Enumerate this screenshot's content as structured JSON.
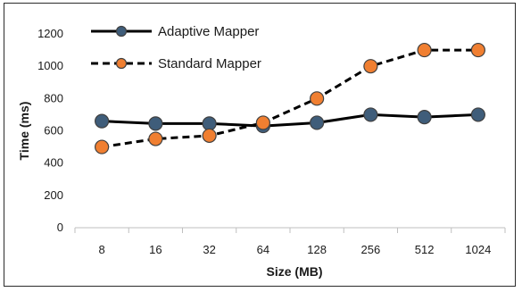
{
  "chart_data": {
    "type": "line",
    "categories": [
      "8",
      "16",
      "32",
      "64",
      "128",
      "256",
      "512",
      "1024"
    ],
    "series": [
      {
        "name": "Adaptive Mapper",
        "values": [
          660,
          645,
          645,
          630,
          650,
          700,
          685,
          700
        ],
        "color": "#3f5d7a",
        "line_color": "#000000",
        "dash": "solid"
      },
      {
        "name": "Standard Mapper",
        "values": [
          500,
          550,
          570,
          650,
          800,
          1000,
          1100,
          1100
        ],
        "color": "#f07f31",
        "line_color": "#000000",
        "dash": "dashed"
      }
    ],
    "xlabel": "Size (MB)",
    "ylabel": "Time (ms)",
    "ylim": [
      0,
      1200
    ],
    "yticks": [
      0,
      200,
      400,
      600,
      800,
      1000,
      1200
    ],
    "grid": false,
    "legend": "top-left"
  }
}
